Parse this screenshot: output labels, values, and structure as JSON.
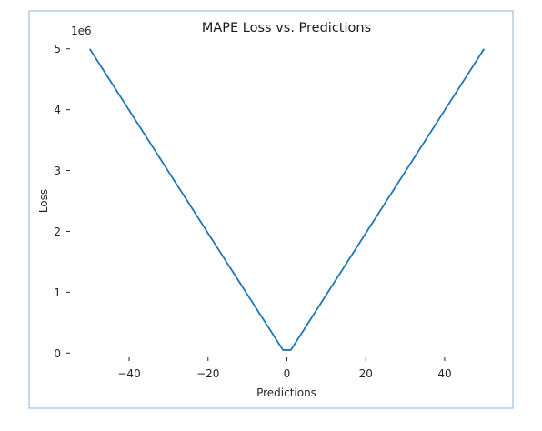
{
  "chart_data": {
    "type": "line",
    "title": "MAPE Loss vs. Predictions",
    "xlabel": "Predictions",
    "ylabel": "Loss",
    "y_offset_label": "1e6",
    "xlim": [
      -55,
      55
    ],
    "ylim": [
      -250000,
      5250000
    ],
    "x_ticks": [
      -40,
      -20,
      0,
      20,
      40
    ],
    "x_tick_labels": [
      "−40",
      "−20",
      "0",
      "20",
      "40"
    ],
    "y_ticks": [
      0,
      1000000,
      2000000,
      3000000,
      4000000,
      5000000
    ],
    "y_tick_labels": [
      "0",
      "1",
      "2",
      "3",
      "4",
      "5"
    ],
    "grid": false,
    "series": [
      {
        "color": "#1f77b4",
        "points": [
          [
            -50,
            5000000
          ],
          [
            -1,
            50000
          ],
          [
            0,
            50000
          ],
          [
            1,
            50000
          ],
          [
            50,
            5000000
          ]
        ]
      }
    ]
  }
}
